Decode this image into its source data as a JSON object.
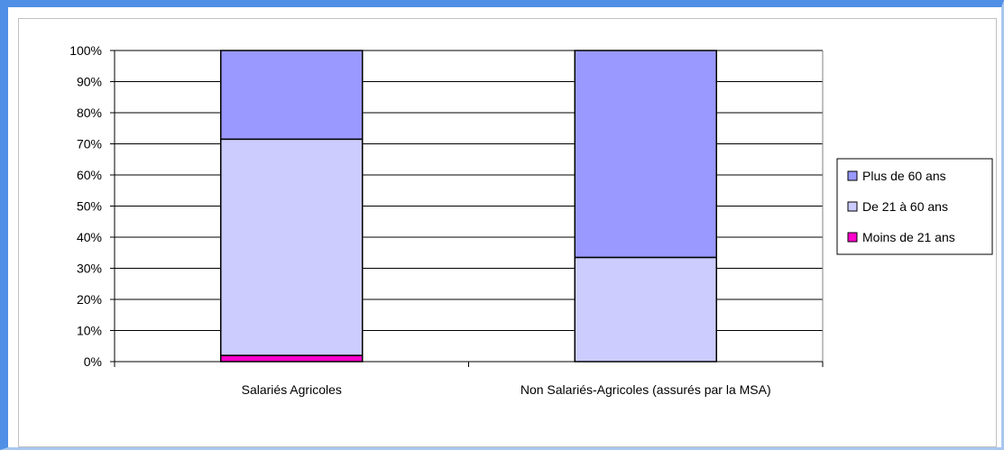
{
  "chart_data": {
    "type": "bar",
    "stacked": true,
    "percent": true,
    "categories": [
      "Salariés Agricoles",
      "Non Salariés-Agricoles (assurés par la MSA)"
    ],
    "series": [
      {
        "name": "Moins de 21 ans",
        "values": [
          2,
          0
        ],
        "color": "#ff00cc"
      },
      {
        "name": "De 21 à 60 ans",
        "values": [
          69.5,
          33.5
        ],
        "color": "#ccccff"
      },
      {
        "name": "Plus de 60 ans",
        "values": [
          28.5,
          66.5
        ],
        "color": "#9999ff"
      }
    ],
    "legend_order": [
      "Plus de 60 ans",
      "De 21 à 60 ans",
      "Moins de 21 ans"
    ],
    "ylim": [
      0,
      100
    ],
    "yticks": [
      "0%",
      "10%",
      "20%",
      "30%",
      "40%",
      "50%",
      "60%",
      "70%",
      "80%",
      "90%",
      "100%"
    ],
    "grid": true,
    "legend_position": "right"
  }
}
